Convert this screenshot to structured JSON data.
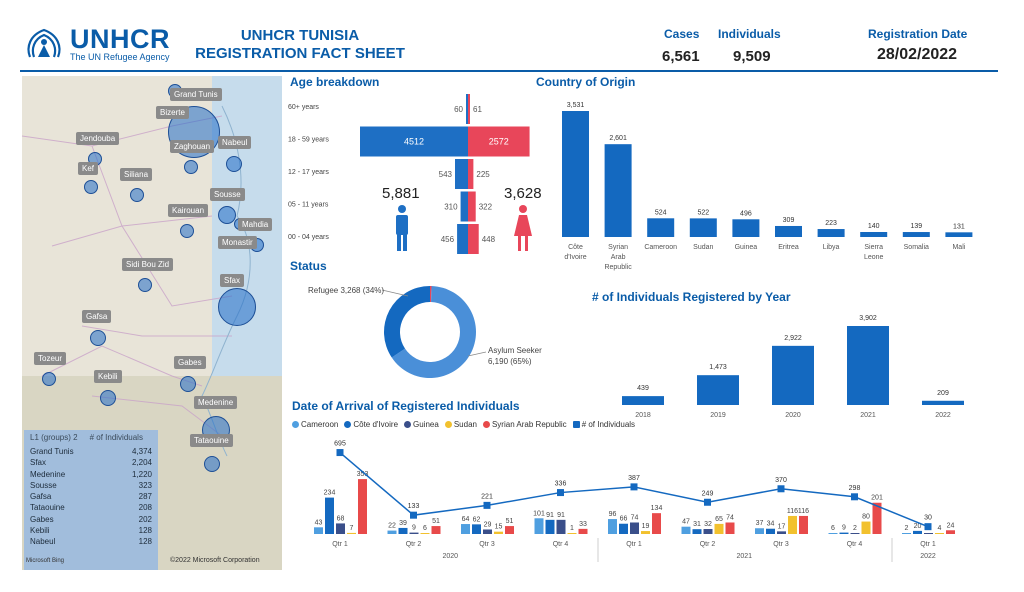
{
  "header": {
    "logo_word": "UNHCR",
    "logo_sub": "The UN Refugee Agency",
    "title_line1": "UNHCR TUNISIA",
    "title_line2": "REGISTRATION FACT SHEET",
    "cases_label": "Cases",
    "cases_value": "6,561",
    "individuals_label": "Individuals",
    "individuals_value": "9,509",
    "regdate_label": "Registration Date",
    "regdate_value": "28/02/2022"
  },
  "colors": {
    "brand": "#0a5ca8",
    "male": "#1e6fc4",
    "female": "#e8465a",
    "bar": "#1469c0",
    "cameroon": "#4f9fe0",
    "cote_divoire": "#1469c0",
    "guinea": "#3a4f8a",
    "sudan": "#f2c12e",
    "syria": "#e84a4a"
  },
  "map": {
    "cities": [
      "Grand Tunis",
      "Bizerte",
      "Jendouba",
      "Zaghouan",
      "Nabeul",
      "Kef",
      "Siliana",
      "Sousse",
      "Kairouan",
      "Mahdia",
      "Monastir",
      "Sidi Bou Zid",
      "Sfax",
      "Gafsa",
      "Gabes",
      "Tozeur",
      "Kebili",
      "Medenine",
      "Tataouine"
    ],
    "table_header_col1": "L1 (groups) 2",
    "table_header_col2": "# of Individuals",
    "table_rows": [
      {
        "name": "Grand Tunis",
        "value": "4,374"
      },
      {
        "name": "Sfax",
        "value": "2,204"
      },
      {
        "name": "Medenine",
        "value": "1,220"
      },
      {
        "name": "Sousse",
        "value": "323"
      },
      {
        "name": "Gafsa",
        "value": "287"
      },
      {
        "name": "Tataouine",
        "value": "208"
      },
      {
        "name": "Gabes",
        "value": "202"
      },
      {
        "name": "Kebili",
        "value": "128"
      },
      {
        "name": "Nabeul",
        "value": "128"
      }
    ],
    "bing": "Microsoft Bing",
    "copyright": "©2022 Microsoft Corporation"
  },
  "age": {
    "title": "Age breakdown",
    "male_total": "5,881",
    "female_total": "3,628",
    "groups": [
      {
        "label": "60+ years",
        "male": 60,
        "female": 61
      },
      {
        "label": "18 - 59 years",
        "male": 4512,
        "female": 2572
      },
      {
        "label": "12 - 17 years",
        "male": 543,
        "female": 225
      },
      {
        "label": "05 - 11 years",
        "male": 310,
        "female": 322
      },
      {
        "label": "00 - 04 years",
        "male": 456,
        "female": 448
      }
    ]
  },
  "status": {
    "title": "Status",
    "refugee_label": "Refugee 3,268 (34%)",
    "asylum_label_1": "Asylum Seeker",
    "asylum_label_2": "6,190 (65%)",
    "refugee": 3268,
    "asylum": 6190,
    "other": 51
  },
  "chart_data": [
    {
      "type": "bar",
      "title": "Country of Origin",
      "categories": [
        "Côte d'Ivoire",
        "Syrian Arab Republic",
        "Cameroon",
        "Sudan",
        "Guinea",
        "Eritrea",
        "Libya",
        "Sierra Leone",
        "Somalia",
        "Mali"
      ],
      "values": [
        3531,
        2601,
        524,
        522,
        496,
        309,
        223,
        140,
        139,
        131
      ]
    },
    {
      "type": "bar",
      "title": "# of Individuals Registered by Year",
      "categories": [
        "2018",
        "2019",
        "2020",
        "2021",
        "2022"
      ],
      "values": [
        439,
        1473,
        2922,
        3902,
        209
      ]
    },
    {
      "type": "bar",
      "title": "Date of Arrival of Registered Individuals",
      "categories": [
        "Qtr 1",
        "Qtr 2",
        "Qtr 3",
        "Qtr 4",
        "Qtr 1",
        "Qtr 2",
        "Qtr 3",
        "Qtr 4",
        "Qtr 1"
      ],
      "years": [
        {
          "label": "2020",
          "span": 4
        },
        {
          "label": "2021",
          "span": 4
        },
        {
          "label": "2022",
          "span": 1
        }
      ],
      "series": [
        {
          "name": "Cameroon",
          "values": [
            43,
            22,
            64,
            101,
            96,
            47,
            37,
            6,
            2
          ]
        },
        {
          "name": "Côte d'Ivoire",
          "values": [
            234,
            39,
            62,
            91,
            66,
            31,
            34,
            9,
            20
          ]
        },
        {
          "name": "Guinea",
          "values": [
            68,
            9,
            29,
            91,
            74,
            32,
            17,
            2,
            4
          ]
        },
        {
          "name": "Sudan",
          "values": [
            7,
            6,
            15,
            1,
            19,
            65,
            116,
            80,
            4
          ]
        },
        {
          "name": "Syrian Arab Republic",
          "values": [
            353,
            51,
            51,
            33,
            134,
            74,
            116,
            201,
            24
          ]
        }
      ],
      "line": {
        "name": "# of Individuals",
        "values": [
          695,
          133,
          221,
          336,
          387,
          249,
          370,
          298,
          30
        ]
      }
    }
  ]
}
